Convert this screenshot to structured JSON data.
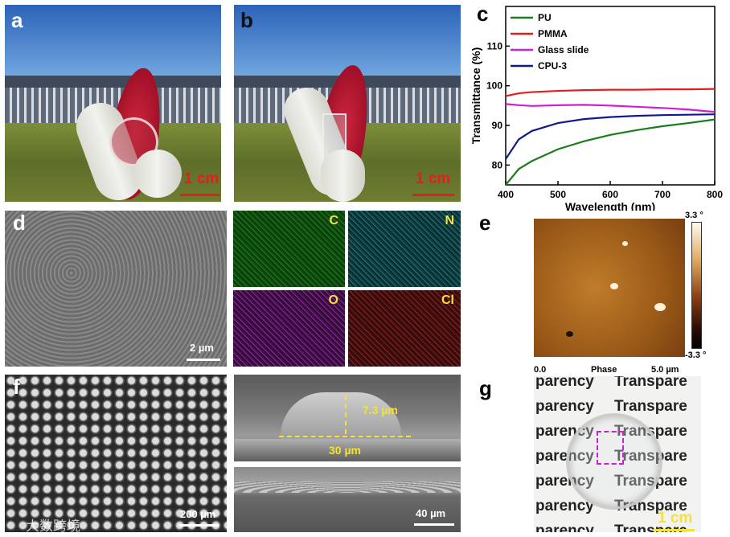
{
  "panels": {
    "a": {
      "label": "a",
      "scale": "1 cm"
    },
    "b": {
      "label": "b",
      "scale": "1 cm"
    },
    "c": {
      "label": "c"
    },
    "d": {
      "label": "d",
      "scale": "2 µm"
    },
    "eds": {
      "c": "C",
      "n": "N",
      "o": "O",
      "cl": "Cl"
    },
    "e": {
      "label": "e",
      "cb_top": "3.3 °",
      "cb_bottom": "-3.3 °",
      "x0": "0.0",
      "xmid": "Phase",
      "x1": "5.0 µm"
    },
    "f": {
      "label": "f",
      "scale": "200 µm",
      "height": "7.3 µm",
      "width": "30 µm",
      "scale2": "40 µm"
    },
    "g": {
      "label": "g",
      "scale": "1 cm",
      "rows": [
        [
          "parency",
          "Transpare"
        ],
        [
          "parency",
          "Transpare"
        ],
        [
          "parency",
          "Transpare"
        ],
        [
          "parency",
          "Transpare"
        ],
        [
          "parency",
          "Transpare"
        ],
        [
          "parency",
          "Transpare"
        ],
        [
          "parency",
          "Transpare"
        ]
      ]
    },
    "watermark": "大数跨境"
  },
  "colors": {
    "pu": "#1a7d1a",
    "pmma": "#e0201c",
    "glass": "#d21ed2",
    "cpu3": "#101a8c",
    "scale_red": "#e0201c",
    "scale_white": "#ffffff",
    "yellow": "#f2e23a"
  },
  "chart_data": {
    "type": "line",
    "xlabel": "Wavelength (nm)",
    "ylabel": "Transmittance (%)",
    "xlim": [
      400,
      800
    ],
    "ylim": [
      75,
      120
    ],
    "xticks": [
      400,
      500,
      600,
      700,
      800
    ],
    "yticks": [
      80,
      90,
      100,
      110
    ],
    "legend_position": "top-left",
    "series": [
      {
        "name": "PU",
        "x": [
          400,
          425,
          450,
          500,
          550,
          600,
          650,
          700,
          750,
          800
        ],
        "values": [
          75,
          79,
          81,
          84,
          86,
          87.6,
          88.8,
          89.8,
          90.6,
          91.5
        ]
      },
      {
        "name": "PMMA",
        "x": [
          400,
          425,
          450,
          500,
          550,
          600,
          650,
          700,
          750,
          800
        ],
        "values": [
          97.4,
          98.1,
          98.4,
          98.7,
          98.9,
          99,
          99,
          99.1,
          99.1,
          99.2
        ]
      },
      {
        "name": "Glass slide",
        "x": [
          400,
          425,
          450,
          500,
          550,
          600,
          650,
          700,
          750,
          800
        ],
        "values": [
          95.4,
          95.1,
          94.9,
          95.1,
          95.2,
          95,
          94.7,
          94.4,
          94,
          93.4
        ]
      },
      {
        "name": "CPU-3",
        "x": [
          400,
          425,
          450,
          500,
          550,
          600,
          650,
          700,
          750,
          800
        ],
        "values": [
          81.5,
          86.5,
          88.6,
          90.6,
          91.6,
          92.1,
          92.4,
          92.6,
          92.7,
          92.8
        ]
      }
    ]
  }
}
